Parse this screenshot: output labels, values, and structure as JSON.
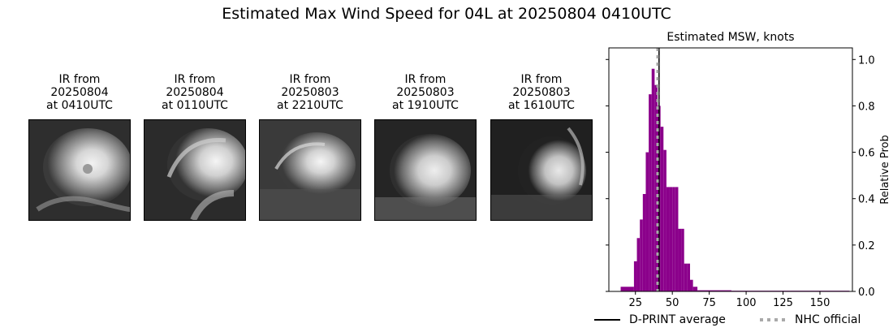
{
  "figure": {
    "suptitle": "Estimated Max Wind Speed for 04L at 20250804 0410UTC"
  },
  "panels": [
    {
      "line1": "IR from",
      "line2": "20250804",
      "line3": "at 0410UTC"
    },
    {
      "line1": "IR from",
      "line2": "20250804",
      "line3": "at 0110UTC"
    },
    {
      "line1": "IR from",
      "line2": "20250803",
      "line3": "at 2210UTC"
    },
    {
      "line1": "IR from",
      "line2": "20250803",
      "line3": "at 1910UTC"
    },
    {
      "line1": "IR from",
      "line2": "20250803",
      "line3": "at 1610UTC"
    }
  ],
  "chart_data": {
    "type": "bar",
    "title": "Estimated MSW, knots",
    "xlabel": "",
    "ylabel": "Relative Prob",
    "xlim": [
      7,
      172
    ],
    "ylim": [
      0,
      1.05
    ],
    "xticks": [
      25,
      50,
      75,
      100,
      125,
      150
    ],
    "yticks": [
      0.0,
      0.2,
      0.4,
      0.6,
      0.8,
      1.0
    ],
    "ytick_labels": [
      "0.0",
      "0.2",
      "0.4",
      "0.6",
      "0.8",
      "1.0"
    ],
    "y_axis_side": "right",
    "bar_color": "#8b008b",
    "bins": [
      {
        "x0": 15,
        "x1": 24,
        "value": 0.02
      },
      {
        "x0": 24,
        "x1": 26,
        "value": 0.13
      },
      {
        "x0": 26,
        "x1": 28,
        "value": 0.23
      },
      {
        "x0": 28,
        "x1": 30,
        "value": 0.31
      },
      {
        "x0": 30,
        "x1": 32,
        "value": 0.42
      },
      {
        "x0": 32,
        "x1": 34,
        "value": 0.6
      },
      {
        "x0": 34,
        "x1": 36,
        "value": 0.85
      },
      {
        "x0": 36,
        "x1": 38,
        "value": 0.96
      },
      {
        "x0": 38,
        "x1": 40,
        "value": 0.89
      },
      {
        "x0": 40,
        "x1": 42,
        "value": 0.8
      },
      {
        "x0": 42,
        "x1": 44,
        "value": 0.71
      },
      {
        "x0": 44,
        "x1": 46,
        "value": 0.61
      },
      {
        "x0": 46,
        "x1": 48,
        "value": 0.45
      },
      {
        "x0": 48,
        "x1": 50,
        "value": 0.45
      },
      {
        "x0": 50,
        "x1": 52,
        "value": 0.45
      },
      {
        "x0": 52,
        "x1": 54,
        "value": 0.45
      },
      {
        "x0": 54,
        "x1": 56,
        "value": 0.27
      },
      {
        "x0": 56,
        "x1": 58,
        "value": 0.27
      },
      {
        "x0": 58,
        "x1": 60,
        "value": 0.12
      },
      {
        "x0": 60,
        "x1": 62,
        "value": 0.12
      },
      {
        "x0": 62,
        "x1": 64,
        "value": 0.05
      },
      {
        "x0": 64,
        "x1": 67,
        "value": 0.02
      },
      {
        "x0": 67,
        "x1": 90,
        "value": 0.005
      },
      {
        "x0": 90,
        "x1": 130,
        "value": 0.003
      },
      {
        "x0": 130,
        "x1": 170,
        "value": 0.003
      }
    ],
    "dprint_average": 41,
    "nhc_official": 40,
    "legend": {
      "placement": "bottom",
      "entries": [
        {
          "label": "D-PRINT average",
          "color": "#000000",
          "style": "solid"
        },
        {
          "label": "NHC official",
          "color": "#a9a9a9",
          "style": "dotted"
        }
      ]
    }
  }
}
